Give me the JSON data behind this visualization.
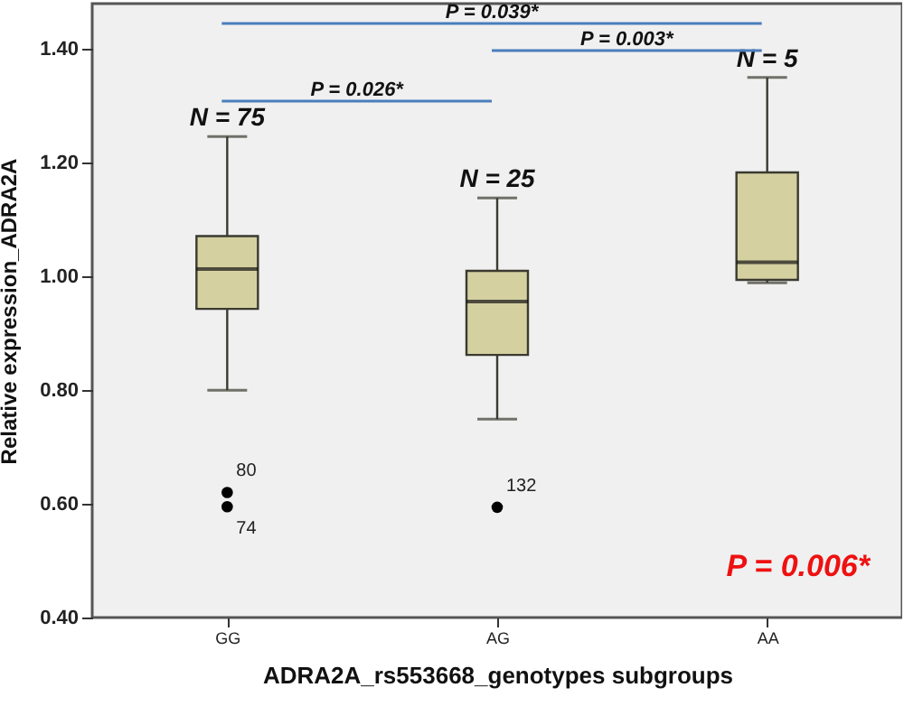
{
  "chart_data": {
    "type": "box",
    "xlabel": "ADRA2A_rs553668_genotypes subgroups",
    "ylabel": "Relative expression_ADRA2A",
    "categories": [
      "GG",
      "AG",
      "AA"
    ],
    "boxes": [
      {
        "low": 0.8,
        "q1": 0.943,
        "median": 1.013,
        "q3": 1.071,
        "high": 1.246,
        "outliers": [
          0.62,
          0.595
        ]
      },
      {
        "low": 0.749,
        "q1": 0.862,
        "median": 0.956,
        "q3": 1.01,
        "high": 1.138,
        "outliers": [
          0.594
        ]
      },
      {
        "low": 0.989,
        "q1": 0.994,
        "median": 1.025,
        "q3": 1.183,
        "high": 1.35
      }
    ],
    "ylim": [
      0.4,
      1.48
    ],
    "yticks": [
      {
        "value": 0.4,
        "label": "0.40"
      },
      {
        "value": 0.6,
        "label": "0.60"
      },
      {
        "value": 0.8,
        "label": "0.80"
      },
      {
        "value": 1.0,
        "label": "1.00"
      },
      {
        "value": 1.2,
        "label": "1.20"
      },
      {
        "value": 1.4,
        "label": "1.40"
      }
    ],
    "annotations": [
      "N = 75",
      "N = 25",
      "N = 5",
      "80",
      "74",
      "132",
      "P = 0.026*",
      "P = 0.039*",
      "P = 0.003*",
      "P = 0.006*"
    ],
    "grid": false
  }
}
